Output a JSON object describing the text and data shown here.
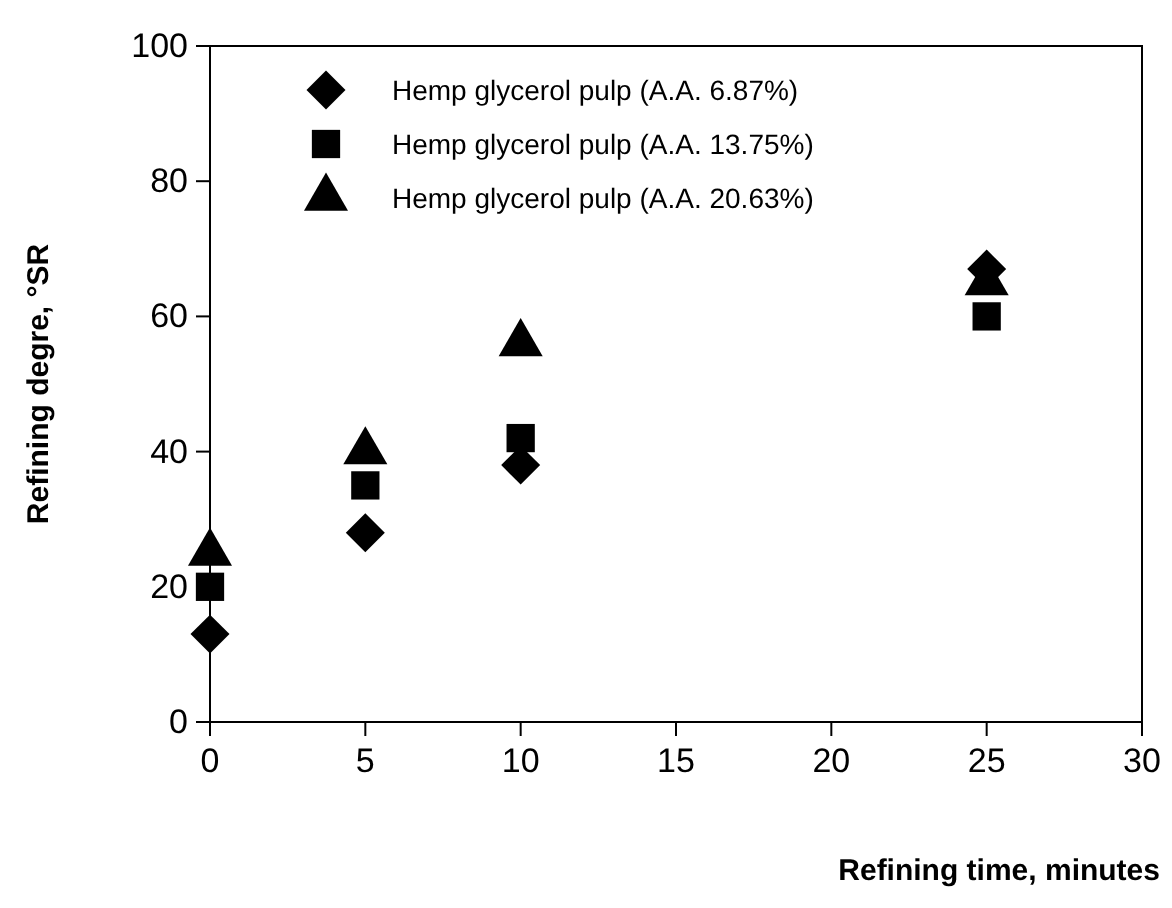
{
  "chart_data": {
    "type": "scatter",
    "xlabel": "Refining time, minutes",
    "ylabel": "Refining degre, °SR",
    "x": [
      0,
      5,
      10,
      25
    ],
    "xlim": [
      0,
      30
    ],
    "xticks": [
      0,
      5,
      10,
      15,
      20,
      25,
      30
    ],
    "ylim": [
      0,
      100
    ],
    "yticks": [
      0,
      20,
      40,
      60,
      80,
      100
    ],
    "legend": "top left",
    "grid": false,
    "series": [
      {
        "name": "Hemp glycerol pulp (A.A. 6.87%)",
        "color": "#000000",
        "marker": "diamond",
        "values": [
          13,
          28,
          38,
          67
        ]
      },
      {
        "name": "Hemp glycerol pulp (A.A. 13.75%)",
        "color": "#000000",
        "marker": "square",
        "values": [
          20,
          35,
          42,
          60
        ]
      },
      {
        "name": "Hemp glycerol pulp (A.A. 20.63%)",
        "color": "#000000",
        "marker": "triangle",
        "values": [
          25,
          40,
          56,
          65
        ]
      }
    ]
  }
}
